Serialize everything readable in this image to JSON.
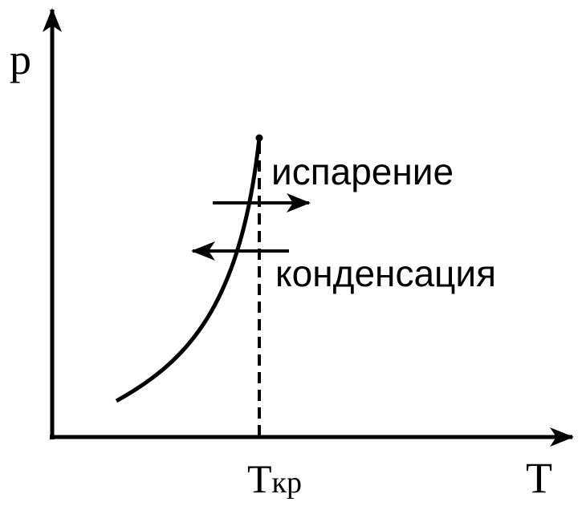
{
  "axes": {
    "y_label": "p",
    "x_label": "T"
  },
  "critical_temperature": {
    "symbol": "T",
    "subscript": "кр"
  },
  "annotations": {
    "evaporation": "испарение",
    "condensation": "конденсация"
  }
}
